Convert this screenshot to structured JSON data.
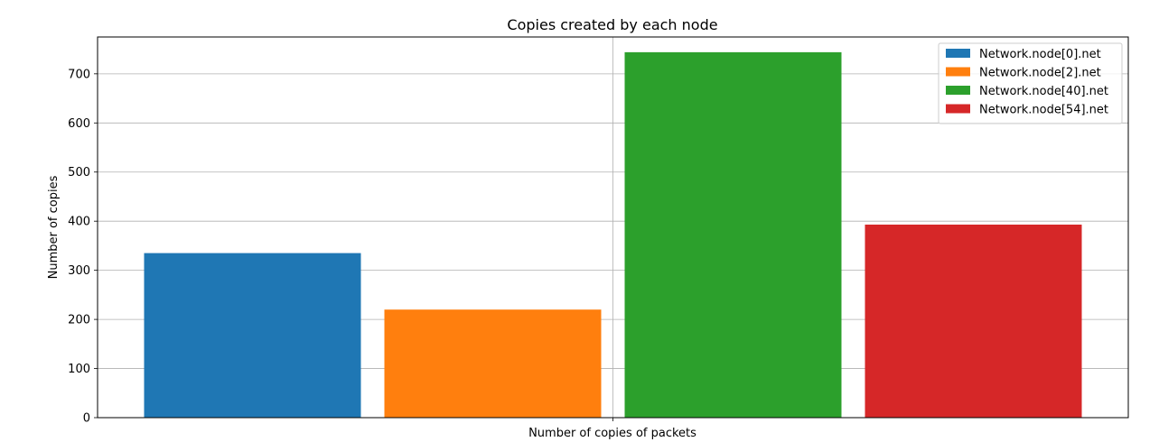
{
  "chart_data": {
    "type": "bar",
    "title": "Copies created by each node",
    "xlabel": "Number of copies of packets",
    "ylabel": "Number of copies",
    "ylim": [
      0,
      775
    ],
    "yticks": [
      0,
      100,
      200,
      300,
      400,
      500,
      600,
      700
    ],
    "grid": true,
    "legend_position": "top-right",
    "series": [
      {
        "name": "Network.node[0].net",
        "value": 335,
        "color": "#1f77b4"
      },
      {
        "name": "Network.node[2].net",
        "value": 220,
        "color": "#ff7f0e"
      },
      {
        "name": "Network.node[40].net",
        "value": 744,
        "color": "#2ca02c"
      },
      {
        "name": "Network.node[54].net",
        "value": 393,
        "color": "#d62728"
      }
    ]
  }
}
